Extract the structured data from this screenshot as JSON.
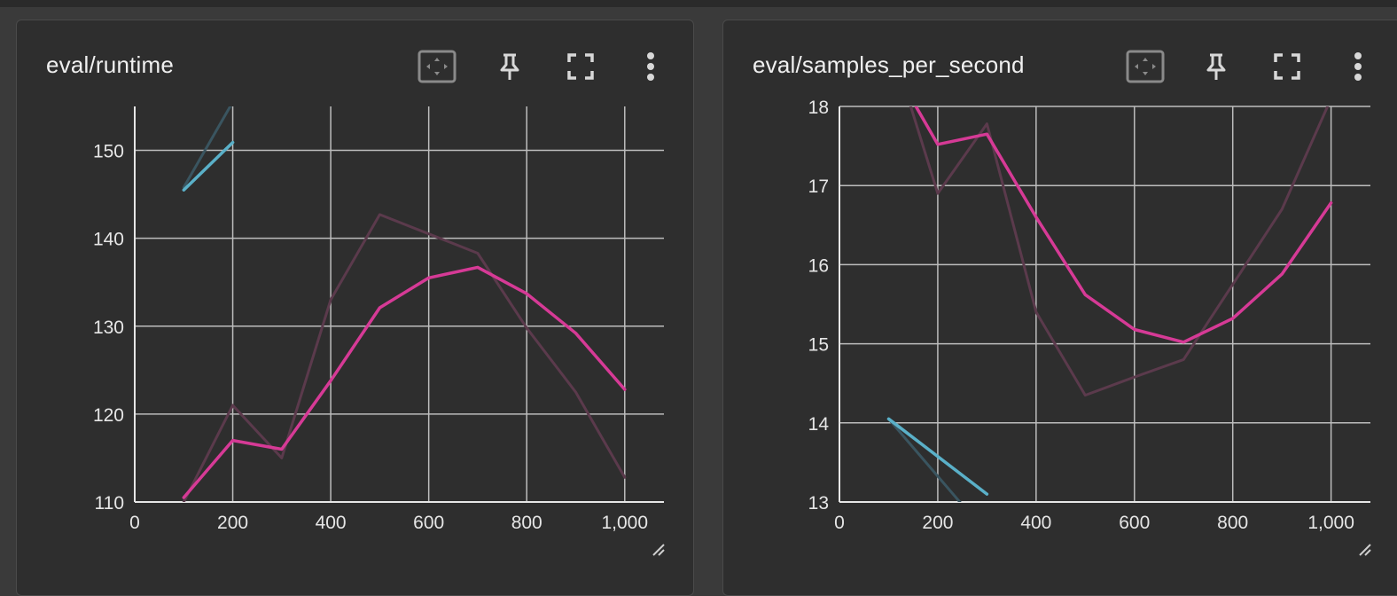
{
  "cards": [
    {
      "title": "eval/runtime",
      "chart_data": {
        "type": "line",
        "xlabel": "",
        "ylabel": "",
        "xlim": [
          0,
          1080
        ],
        "ylim": [
          110,
          155
        ],
        "x_ticks": [
          0,
          200,
          400,
          600,
          800,
          1000
        ],
        "x_tick_labels": [
          "0",
          "200",
          "400",
          "600",
          "800",
          "1,000"
        ],
        "y_ticks": [
          110,
          120,
          130,
          140,
          150
        ],
        "y_tick_labels": [
          "110",
          "120",
          "130",
          "140",
          "150"
        ],
        "grid": true,
        "series": [
          {
            "color": "#5b3a4c",
            "role": "raw",
            "x": [
              100,
              200,
              300,
              400,
              500,
              600,
              700,
              800,
              900,
              1000
            ],
            "y": [
              110,
              121,
              115,
              133,
              142.7,
              140.5,
              138.3,
              129.8,
              122.5,
              112.8
            ]
          },
          {
            "color": "#d63a96",
            "role": "smoothed",
            "x": [
              100,
              200,
              300,
              400,
              500,
              600,
              700,
              800,
              900,
              1000
            ],
            "y": [
              110.5,
              117,
              116,
              123.8,
              132.1,
              135.5,
              136.7,
              133.7,
              129.2,
              122.8
            ]
          },
          {
            "color": "#3a5560",
            "role": "raw",
            "x": [
              100,
              200
            ],
            "y": [
              145.8,
              155.5
            ]
          },
          {
            "color": "#5ab0c8",
            "role": "smoothed",
            "x": [
              100,
              200
            ],
            "y": [
              145.5,
              150.9
            ]
          }
        ]
      }
    },
    {
      "title": "eval/samples_per_second",
      "chart_data": {
        "type": "line",
        "xlabel": "",
        "ylabel": "",
        "xlim": [
          0,
          1080
        ],
        "ylim": [
          13,
          18
        ],
        "x_ticks": [
          0,
          200,
          400,
          600,
          800,
          1000
        ],
        "x_tick_labels": [
          "0",
          "200",
          "400",
          "600",
          "800",
          "1,000"
        ],
        "y_ticks": [
          13,
          14,
          15,
          16,
          17,
          18
        ],
        "y_tick_labels": [
          "13",
          "14",
          "15",
          "16",
          "17",
          "18"
        ],
        "grid": true,
        "series": [
          {
            "color": "#5b3a4c",
            "role": "raw",
            "x": [
              100,
              200,
              300,
              400,
              500,
              600,
              700,
              800,
              900,
              1000
            ],
            "y": [
              18.9,
              16.9,
              17.78,
              15.4,
              14.35,
              14.58,
              14.8,
              15.75,
              16.7,
              18.1
            ]
          },
          {
            "color": "#d63a96",
            "role": "smoothed",
            "x": [
              100,
              200,
              300,
              400,
              500,
              600,
              700,
              800,
              900,
              1000
            ],
            "y": [
              18.6,
              17.52,
              17.65,
              16.6,
              15.62,
              15.18,
              15.02,
              15.32,
              15.88,
              16.78
            ]
          },
          {
            "color": "#3a5560",
            "role": "raw",
            "x": [
              100,
              300
            ],
            "y": [
              14.05,
              12.6
            ]
          },
          {
            "color": "#5ab0c8",
            "role": "smoothed",
            "x": [
              100,
              300
            ],
            "y": [
              14.05,
              13.1
            ]
          }
        ]
      }
    }
  ],
  "icons": [
    "fit-domain-icon",
    "pin-icon",
    "fullscreen-icon",
    "more-vert-icon"
  ],
  "colors": {
    "background": "#3a3a3a",
    "card": "#2e2e2e",
    "grid": "#bdbdbd",
    "axis": "#e6e6e6",
    "text": "#f0f0f0"
  }
}
